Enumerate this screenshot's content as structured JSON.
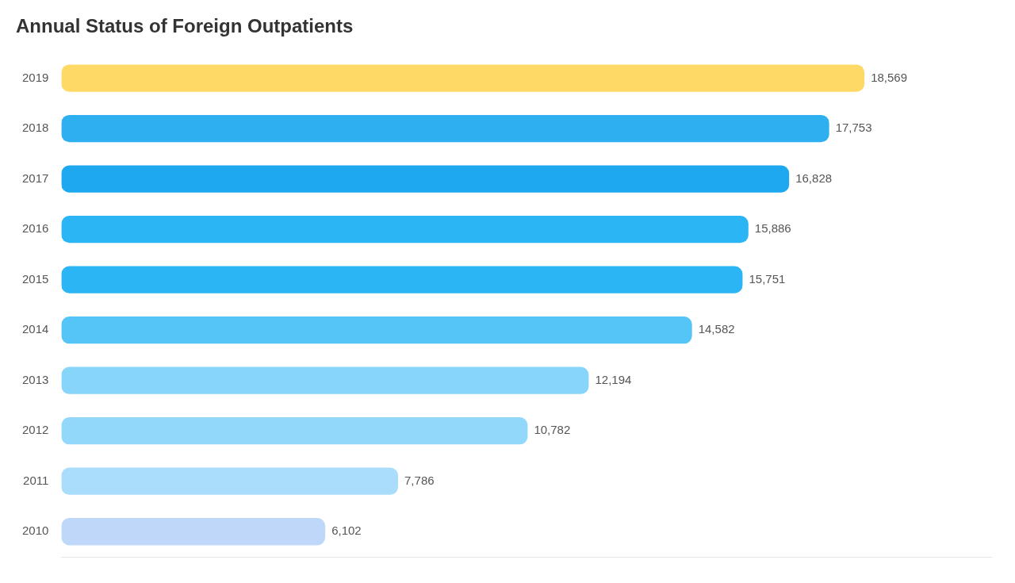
{
  "chart_data": {
    "type": "bar",
    "orientation": "horizontal",
    "title": "Annual Status of Foreign Outpatients",
    "categories": [
      "2019",
      "2018",
      "2017",
      "2016",
      "2015",
      "2014",
      "2013",
      "2012",
      "2011",
      "2010"
    ],
    "values": [
      18569,
      17753,
      16828,
      15886,
      15751,
      14582,
      12194,
      10782,
      7786,
      6102
    ],
    "value_labels": [
      "18,569",
      "17,753",
      "16,828",
      "15,886",
      "15,751",
      "14,582",
      "12,194",
      "10,782",
      "7,786",
      "6,102"
    ],
    "colors": [
      "#FFD966",
      "#2EB0F0",
      "#1EA8F0",
      "#2BB5F5",
      "#2BB5F5",
      "#55C5F7",
      "#88D5FA",
      "#92D8FA",
      "#AADDFC",
      "#BFD8FA"
    ],
    "xlim": [
      0,
      21500
    ],
    "grid": false,
    "data_labels": true,
    "tick_labels": "y"
  }
}
